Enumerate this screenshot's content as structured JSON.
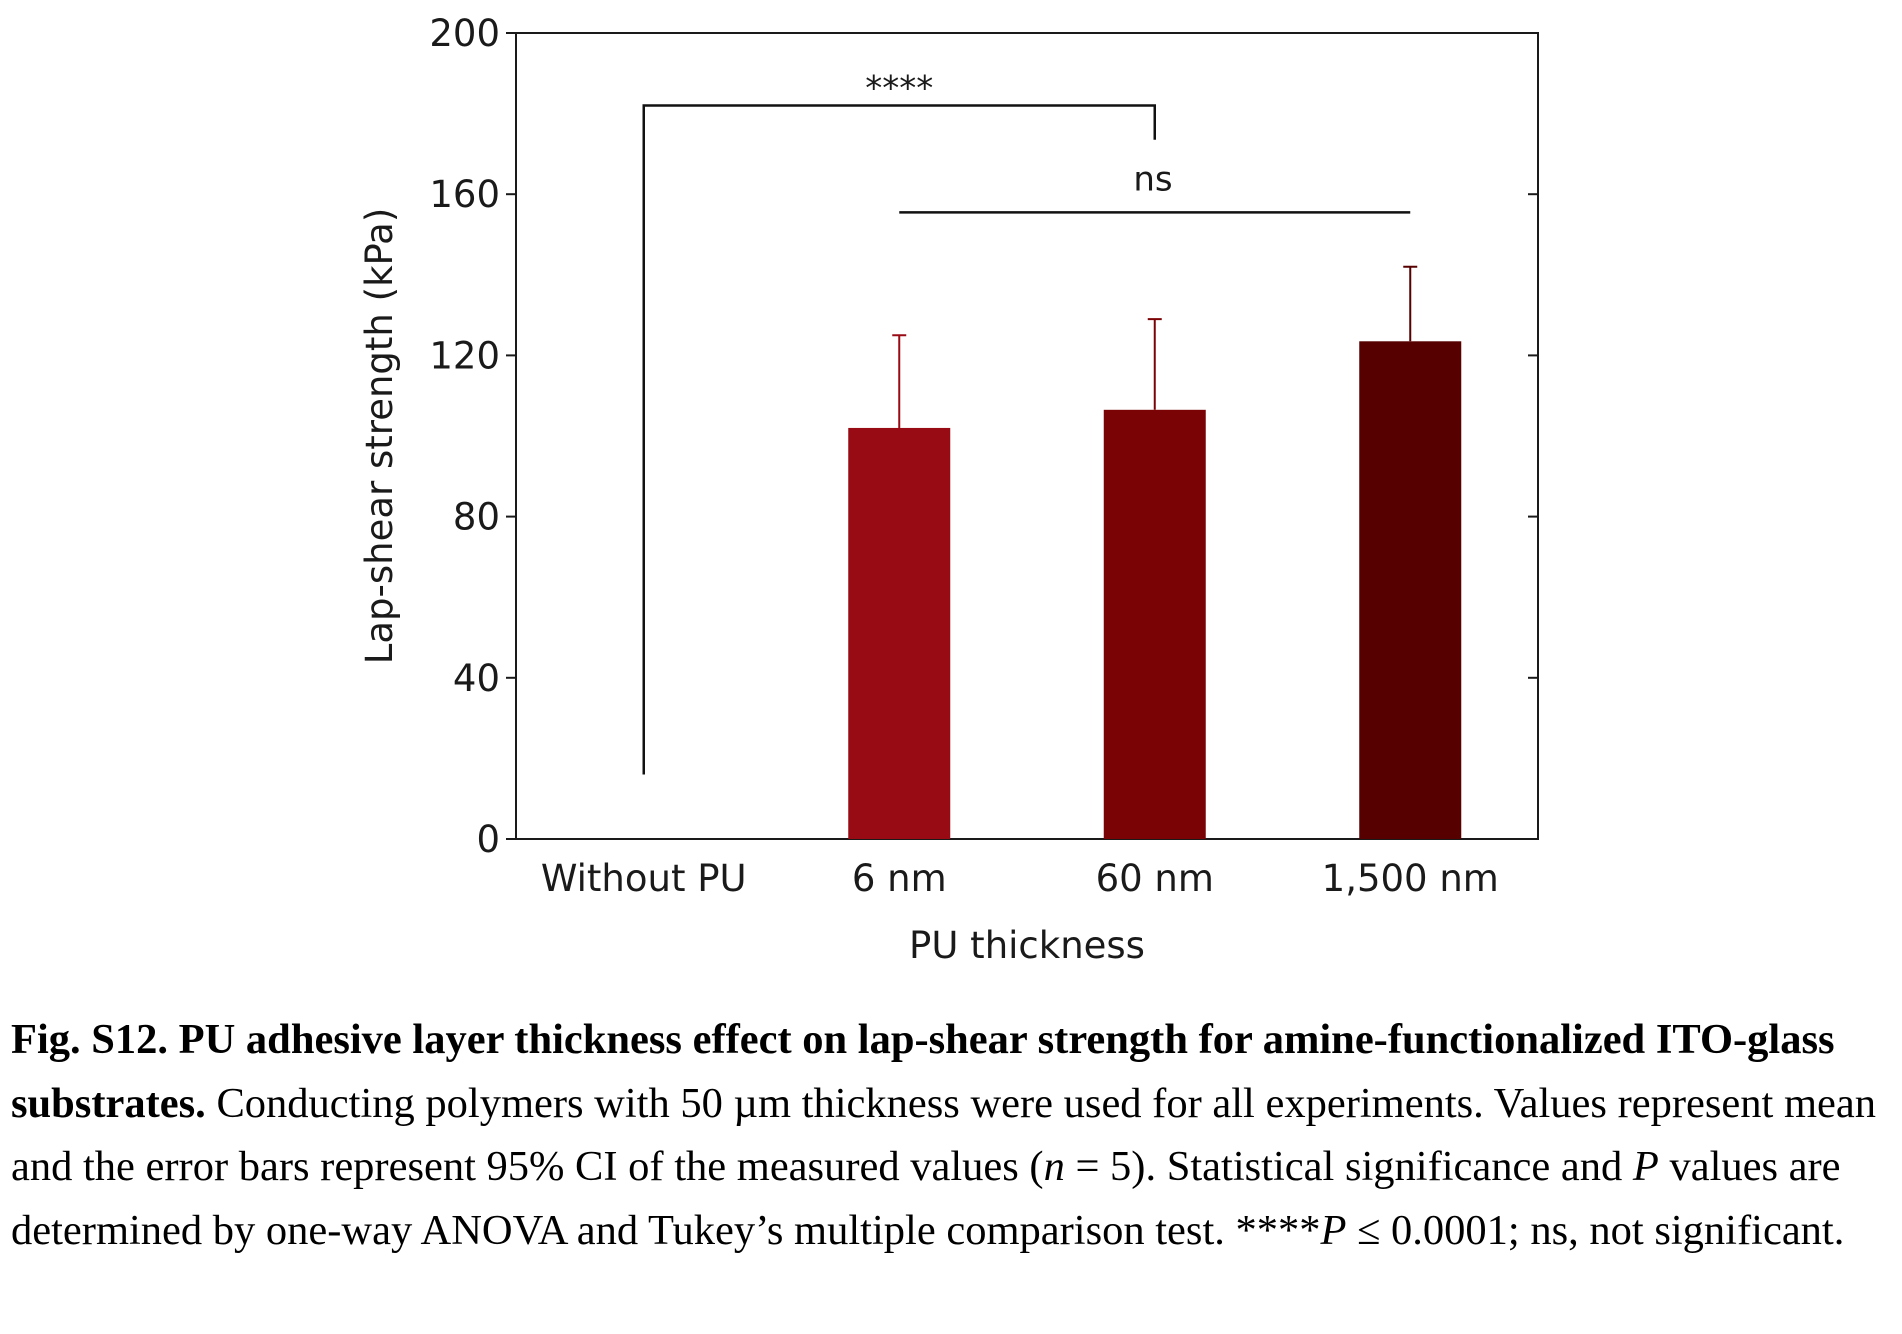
{
  "chart_data": {
    "type": "bar",
    "categories": [
      "Without PU",
      "6 nm",
      "60 nm",
      "1,500 nm"
    ],
    "values": [
      null,
      102,
      106.5,
      123.5
    ],
    "error_upper": [
      null,
      125,
      129,
      142
    ],
    "colors": [
      null,
      "#990b14",
      "#7a0306",
      "#560000"
    ],
    "xlabel": "PU thickness",
    "ylabel": "Lap-shear strength (kPa)",
    "ylim": [
      0,
      200
    ],
    "yticks": [
      0,
      40,
      80,
      120,
      160,
      200
    ],
    "grid": false,
    "significance": [
      {
        "from": "Without PU",
        "to": "60 nm",
        "label": "****",
        "style": "bracket"
      },
      {
        "from": "6 nm",
        "to": "1,500 nm",
        "label": "ns",
        "style": "line"
      }
    ]
  },
  "caption": {
    "lead": "Fig. S12. PU adhesive layer thickness effect on lap-shear strength for amine-functionalized ITO-glass substrates.",
    "s1": " Conducting polymers with 50 µm thickness were used for all experiments. Values represent mean and the error bars represent 95% CI of the measured values (",
    "n_symbol": "n",
    "s2": " = 5). Statistical significance and ",
    "p_symbol1": "P",
    "s3": " values are determined by one-way ANOVA and Tukey’s multiple comparison test. ****",
    "p_symbol2": "P",
    "s4": " ≤ 0.0001; ns, not significant."
  }
}
